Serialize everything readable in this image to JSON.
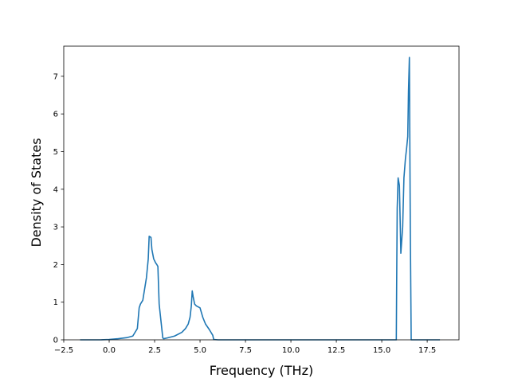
{
  "chart_data": {
    "type": "line",
    "xlabel": "Frequency (THz)",
    "ylabel": "Density of States",
    "xlim": [
      -2.5,
      19.25
    ],
    "ylim": [
      0,
      7.8
    ],
    "xticks": [
      "−2.5",
      "0.0",
      "2.5",
      "5.0",
      "7.5",
      "10.0",
      "12.5",
      "15.0",
      "17.5"
    ],
    "yticks": [
      "0",
      "1",
      "2",
      "3",
      "4",
      "5",
      "6",
      "7"
    ],
    "grid": false,
    "colors": {
      "line": "#1f77b4",
      "axes": "#000000",
      "background": "#ffffff"
    },
    "series": [
      {
        "x": [
          -1.6,
          -0.5,
          0.0,
          0.5,
          1.0,
          1.3,
          1.55,
          1.65,
          1.72,
          1.85,
          1.95,
          2.05,
          2.15,
          2.2,
          2.3,
          2.35,
          2.45,
          2.55,
          2.62,
          2.68,
          2.75,
          2.85,
          2.95,
          3.0,
          3.2,
          3.6,
          4.0,
          4.2,
          4.35,
          4.45,
          4.52,
          4.57,
          4.62,
          4.7,
          4.8,
          5.0,
          5.15,
          5.3,
          5.5,
          5.7,
          5.75,
          6.0,
          10.0,
          15.0,
          15.8,
          15.82,
          15.85,
          15.9,
          15.97,
          16.05,
          16.15,
          16.22,
          16.3,
          16.37,
          16.43,
          16.47,
          16.52,
          16.57,
          16.62,
          17.0,
          18.2
        ],
        "y": [
          0,
          0,
          0.01,
          0.03,
          0.06,
          0.1,
          0.3,
          0.85,
          0.95,
          1.05,
          1.35,
          1.65,
          2.15,
          2.75,
          2.72,
          2.4,
          2.15,
          2.05,
          2.0,
          1.95,
          0.95,
          0.5,
          0.05,
          0.03,
          0.05,
          0.1,
          0.2,
          0.3,
          0.42,
          0.6,
          0.9,
          1.3,
          1.15,
          0.95,
          0.9,
          0.85,
          0.6,
          0.42,
          0.28,
          0.12,
          0.01,
          0,
          0,
          0,
          0,
          1.5,
          3.5,
          4.3,
          4.1,
          2.3,
          3.0,
          4.3,
          4.8,
          5.1,
          5.4,
          6.6,
          7.5,
          3.0,
          0,
          0,
          0
        ]
      }
    ]
  }
}
